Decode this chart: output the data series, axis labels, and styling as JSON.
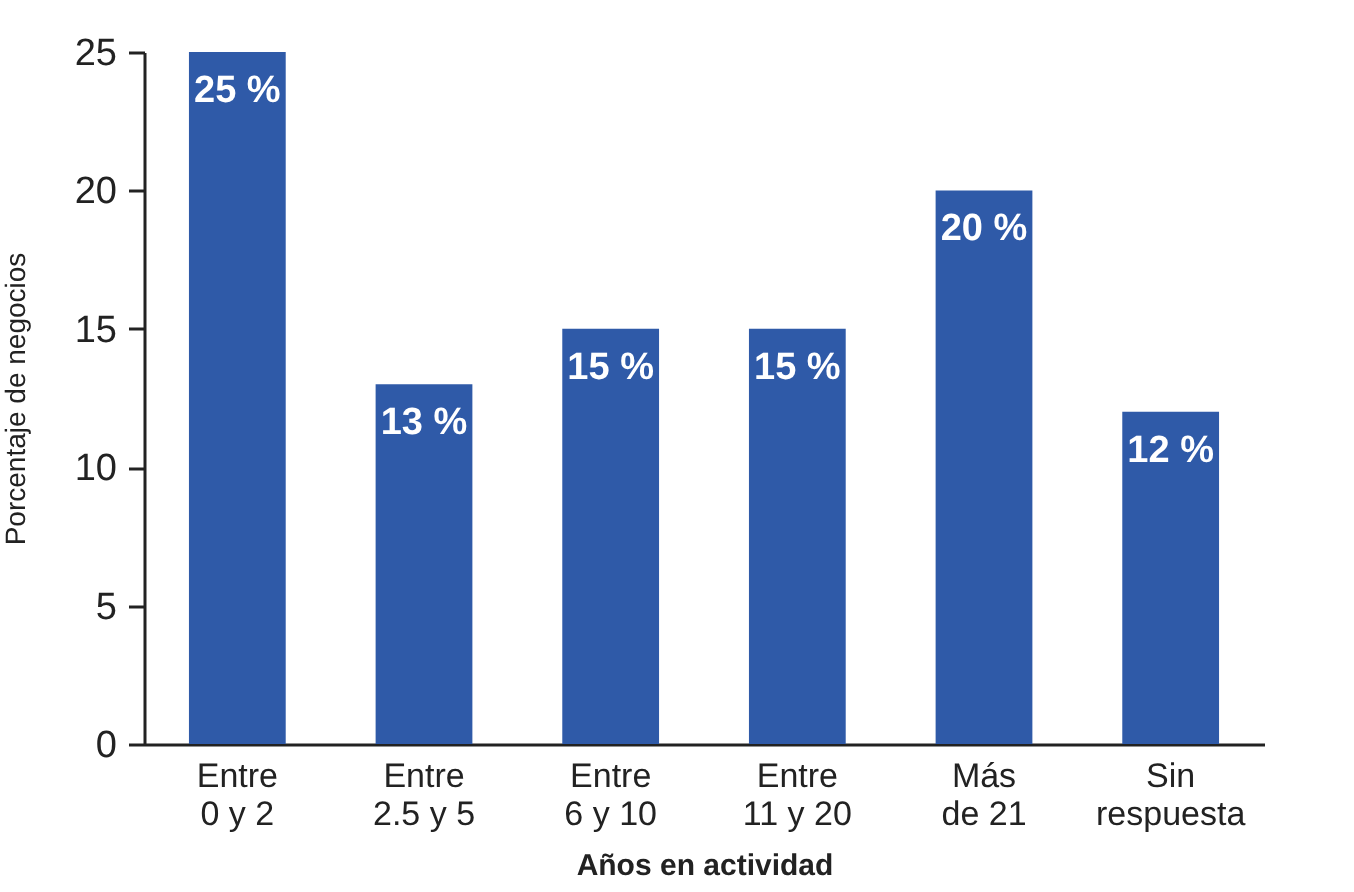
{
  "chart_data": {
    "type": "bar",
    "xlabel": "Años en actividad",
    "ylabel": "Porcentaje de negocios",
    "categories": [
      "Entre\n0 y 2",
      "Entre\n2.5 y 5",
      "Entre\n6 y 10",
      "Entre\n11 y 20",
      "Más\nde 21",
      "Sin\nrespuesta"
    ],
    "values": [
      25,
      13,
      15,
      15,
      20,
      12
    ],
    "value_labels": [
      "25 %",
      "13 %",
      "15 %",
      "15 %",
      "20 %",
      "12 %"
    ],
    "color": "#2f5aa8",
    "ylim": [
      0,
      25
    ],
    "yticks": [
      0,
      5,
      10,
      15,
      20,
      25
    ],
    "grid": false
  }
}
